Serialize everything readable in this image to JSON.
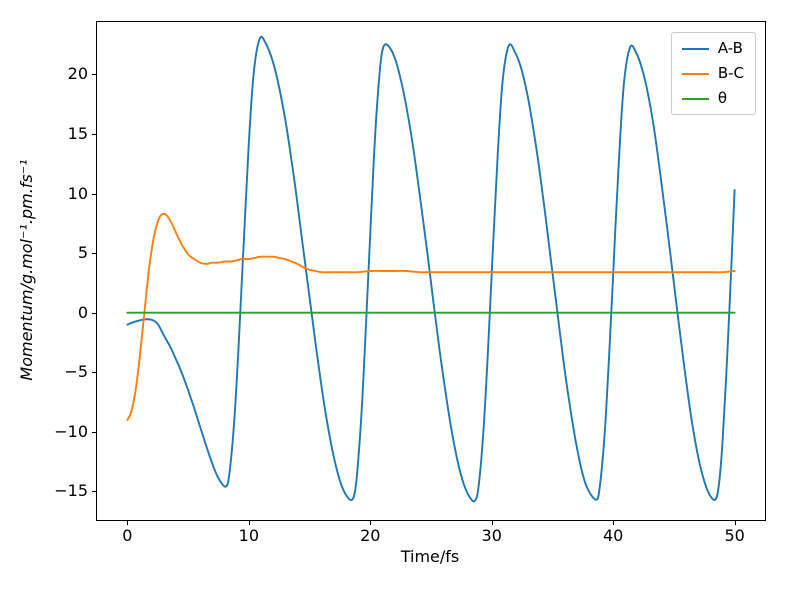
{
  "figure": {
    "background": "#ffffff",
    "spine_color": "#000000",
    "text_color": "#000000"
  },
  "chart_data": {
    "type": "line",
    "title": "",
    "xlabel": "Time/fs",
    "ylabel": "Momentum/g.mol⁻¹.pm.fs⁻¹",
    "xlim": [
      -2.5,
      52.5
    ],
    "ylim": [
      -17.4,
      24.4
    ],
    "x_ticks": [
      0,
      10,
      20,
      30,
      40,
      50
    ],
    "y_ticks": [
      -15,
      -10,
      -5,
      0,
      5,
      10,
      15,
      20
    ],
    "grid": false,
    "legend_position": "upper right",
    "series": [
      {
        "name": "A-B",
        "color": "#1f77b4",
        "points": [
          [
            0,
            -1
          ],
          [
            0.5,
            -0.8
          ],
          [
            1,
            -0.65
          ],
          [
            1.5,
            -0.55
          ],
          [
            2,
            -0.6
          ],
          [
            2.5,
            -0.95
          ],
          [
            3,
            -1.9
          ],
          [
            3.5,
            -2.8
          ],
          [
            4,
            -3.9
          ],
          [
            4.5,
            -5.1
          ],
          [
            5,
            -6.5
          ],
          [
            5.5,
            -8
          ],
          [
            6,
            -9.6
          ],
          [
            6.5,
            -11.2
          ],
          [
            7,
            -12.7
          ],
          [
            7.5,
            -13.9
          ],
          [
            8.1,
            -14.6
          ],
          [
            8.4,
            -13.5
          ],
          [
            8.8,
            -9.1
          ],
          [
            9.2,
            -2
          ],
          [
            9.6,
            6.3
          ],
          [
            10,
            14.2
          ],
          [
            10.4,
            20.1
          ],
          [
            10.9,
            23
          ],
          [
            11.4,
            22.6
          ],
          [
            12,
            21
          ],
          [
            12.5,
            18.9
          ],
          [
            13,
            16.2
          ],
          [
            13.5,
            12.9
          ],
          [
            14,
            9.2
          ],
          [
            14.5,
            5.2
          ],
          [
            15,
            1.3
          ],
          [
            15.5,
            -2.6
          ],
          [
            16,
            -6.3
          ],
          [
            16.5,
            -9.5
          ],
          [
            17,
            -12.1
          ],
          [
            17.5,
            -14.1
          ],
          [
            18,
            -15.3
          ],
          [
            18.5,
            -15.7
          ],
          [
            18.8,
            -14.6
          ],
          [
            19.1,
            -11.2
          ],
          [
            19.4,
            -6.2
          ],
          [
            19.7,
            0.1
          ],
          [
            20,
            6.7
          ],
          [
            20.3,
            13
          ],
          [
            20.6,
            18
          ],
          [
            20.9,
            21.4
          ],
          [
            21.2,
            22.5
          ],
          [
            21.7,
            22.1
          ],
          [
            22.2,
            20.8
          ],
          [
            22.7,
            18.7
          ],
          [
            23.2,
            16
          ],
          [
            23.7,
            12.7
          ],
          [
            24.2,
            8.9
          ],
          [
            24.7,
            5
          ],
          [
            25.2,
            0.9
          ],
          [
            25.7,
            -3.1
          ],
          [
            26.2,
            -6.7
          ],
          [
            26.7,
            -9.9
          ],
          [
            27.2,
            -12.5
          ],
          [
            27.7,
            -14.4
          ],
          [
            28.2,
            -15.5
          ],
          [
            28.6,
            -15.8
          ],
          [
            28.9,
            -14.7
          ],
          [
            29.3,
            -10.2
          ],
          [
            29.7,
            -3
          ],
          [
            30.1,
            5.4
          ],
          [
            30.5,
            13.4
          ],
          [
            30.9,
            19.5
          ],
          [
            31.4,
            22.4
          ],
          [
            31.9,
            21.9
          ],
          [
            32.4,
            20.6
          ],
          [
            32.9,
            18.5
          ],
          [
            33.4,
            15.6
          ],
          [
            33.9,
            12.2
          ],
          [
            34.4,
            8.3
          ],
          [
            34.9,
            4.2
          ],
          [
            35.4,
            0.1
          ],
          [
            35.9,
            -4
          ],
          [
            36.4,
            -7.6
          ],
          [
            36.9,
            -10.7
          ],
          [
            37.4,
            -13.2
          ],
          [
            37.9,
            -14.8
          ],
          [
            38.6,
            -15.7
          ],
          [
            38.9,
            -14.6
          ],
          [
            39.3,
            -10.1
          ],
          [
            39.7,
            -3
          ],
          [
            40.1,
            5.4
          ],
          [
            40.5,
            13.4
          ],
          [
            40.9,
            19.4
          ],
          [
            41.4,
            22.3
          ],
          [
            41.9,
            21.8
          ],
          [
            42.4,
            20.4
          ],
          [
            42.9,
            18.2
          ],
          [
            43.4,
            15.2
          ],
          [
            43.9,
            11.5
          ],
          [
            44.4,
            7.5
          ],
          [
            44.9,
            3.3
          ],
          [
            45.4,
            -0.9
          ],
          [
            45.9,
            -4.9
          ],
          [
            46.4,
            -8.6
          ],
          [
            46.9,
            -11.6
          ],
          [
            47.4,
            -13.8
          ],
          [
            47.9,
            -15.2
          ],
          [
            48.4,
            -15.7
          ],
          [
            48.7,
            -14.5
          ],
          [
            49,
            -10.9
          ],
          [
            49.3,
            -5.5
          ],
          [
            49.6,
            1
          ],
          [
            49.8,
            5.6
          ],
          [
            50,
            10.3
          ]
        ]
      },
      {
        "name": "B-C",
        "color": "#ff7f0e",
        "points": [
          [
            0,
            -9
          ],
          [
            0.3,
            -8.4
          ],
          [
            0.6,
            -7
          ],
          [
            0.9,
            -4.8
          ],
          [
            1.2,
            -2
          ],
          [
            1.5,
            1
          ],
          [
            1.8,
            3.8
          ],
          [
            2.1,
            5.9
          ],
          [
            2.4,
            7.3
          ],
          [
            2.7,
            8.1
          ],
          [
            3,
            8.3
          ],
          [
            3.3,
            8.1
          ],
          [
            3.7,
            7.4
          ],
          [
            4.1,
            6.5
          ],
          [
            4.5,
            5.7
          ],
          [
            5,
            4.9
          ],
          [
            5.5,
            4.5
          ],
          [
            6,
            4.2
          ],
          [
            6.5,
            4.1
          ],
          [
            7,
            4.2
          ],
          [
            7.5,
            4.2
          ],
          [
            8,
            4.3
          ],
          [
            8.5,
            4.3
          ],
          [
            9,
            4.4
          ],
          [
            9.5,
            4.5
          ],
          [
            10,
            4.5
          ],
          [
            10.5,
            4.6
          ],
          [
            11,
            4.7
          ],
          [
            11.5,
            4.7
          ],
          [
            12,
            4.7
          ],
          [
            12.5,
            4.6
          ],
          [
            13,
            4.5
          ],
          [
            13.5,
            4.3
          ],
          [
            14,
            4.1
          ],
          [
            14.5,
            3.8
          ],
          [
            15,
            3.6
          ],
          [
            15.5,
            3.5
          ],
          [
            16,
            3.4
          ],
          [
            17,
            3.4
          ],
          [
            18,
            3.4
          ],
          [
            19,
            3.4
          ],
          [
            20,
            3.5
          ],
          [
            21,
            3.5
          ],
          [
            22,
            3.5
          ],
          [
            23,
            3.5
          ],
          [
            24,
            3.4
          ],
          [
            25,
            3.4
          ],
          [
            26,
            3.4
          ],
          [
            27,
            3.4
          ],
          [
            28,
            3.4
          ],
          [
            29,
            3.4
          ],
          [
            30,
            3.4
          ],
          [
            31,
            3.4
          ],
          [
            32,
            3.4
          ],
          [
            33,
            3.4
          ],
          [
            34,
            3.4
          ],
          [
            35,
            3.4
          ],
          [
            36,
            3.4
          ],
          [
            37,
            3.4
          ],
          [
            38,
            3.4
          ],
          [
            39,
            3.4
          ],
          [
            40,
            3.4
          ],
          [
            41,
            3.4
          ],
          [
            42,
            3.4
          ],
          [
            43,
            3.4
          ],
          [
            44,
            3.4
          ],
          [
            45,
            3.4
          ],
          [
            46,
            3.4
          ],
          [
            47,
            3.4
          ],
          [
            48,
            3.4
          ],
          [
            49,
            3.4
          ],
          [
            50,
            3.5
          ]
        ]
      },
      {
        "name": "θ",
        "color": "#2ca02c",
        "points": [
          [
            0,
            0
          ],
          [
            10,
            0
          ],
          [
            20,
            0
          ],
          [
            30,
            0
          ],
          [
            40,
            0
          ],
          [
            50,
            0
          ]
        ]
      }
    ]
  }
}
